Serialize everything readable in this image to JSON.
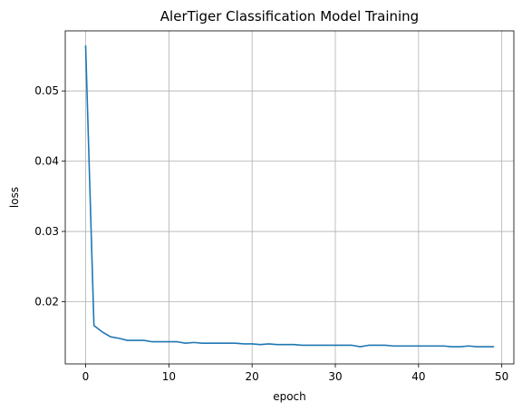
{
  "chart_data": {
    "type": "line",
    "title": "AlerTiger Classification Model Training",
    "xlabel": "epoch",
    "ylabel": "loss",
    "xlim": [
      -2.45,
      51.45
    ],
    "ylim": [
      0.01115,
      0.05855
    ],
    "xticks": [
      0,
      10,
      20,
      30,
      40,
      50
    ],
    "yticks": [
      0.02,
      0.03,
      0.04,
      0.05
    ],
    "xtick_labels": [
      "0",
      "10",
      "20",
      "30",
      "40",
      "50"
    ],
    "ytick_labels": [
      "0.02",
      "0.03",
      "0.04",
      "0.05"
    ],
    "grid": true,
    "line_color": "#1f77b4",
    "series": [
      {
        "x": [
          0,
          1,
          2,
          3,
          4,
          5,
          6,
          7,
          8,
          9,
          10,
          11,
          12,
          13,
          14,
          15,
          16,
          17,
          18,
          19,
          20,
          21,
          22,
          23,
          24,
          25,
          26,
          27,
          28,
          29,
          30,
          31,
          32,
          33,
          34,
          35,
          36,
          37,
          38,
          39,
          40,
          41,
          42,
          43,
          44,
          45,
          46,
          47,
          48,
          49
        ],
        "values": [
          0.0564,
          0.0166,
          0.0157,
          0.015,
          0.0148,
          0.0145,
          0.0145,
          0.0145,
          0.0143,
          0.0143,
          0.0143,
          0.0143,
          0.0141,
          0.0142,
          0.0141,
          0.0141,
          0.0141,
          0.0141,
          0.0141,
          0.014,
          0.014,
          0.0139,
          0.014,
          0.0139,
          0.0139,
          0.0139,
          0.0138,
          0.0138,
          0.0138,
          0.0138,
          0.0138,
          0.0138,
          0.0138,
          0.0136,
          0.0138,
          0.0138,
          0.0138,
          0.0137,
          0.0137,
          0.0137,
          0.0137,
          0.0137,
          0.0137,
          0.0137,
          0.0136,
          0.0136,
          0.0137,
          0.0136,
          0.0136,
          0.0136
        ]
      }
    ]
  }
}
